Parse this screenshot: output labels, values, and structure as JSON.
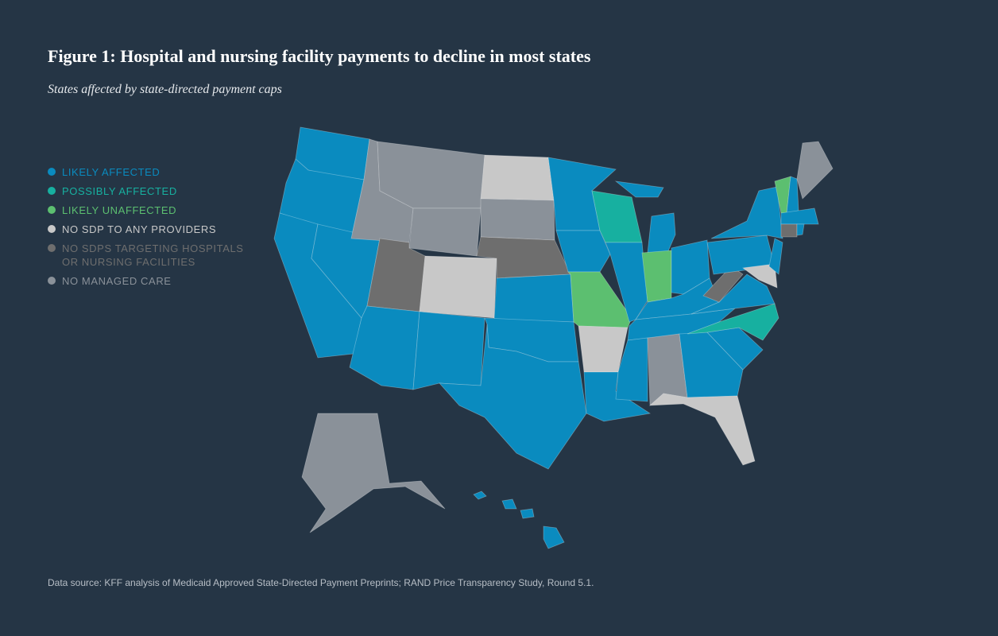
{
  "title": "Figure 1: Hospital and nursing facility payments to decline in most states",
  "subtitle": "States affected by state-directed payment caps",
  "legend": [
    {
      "label": "LIKELY AFFECTED",
      "color": "#0a8bbf"
    },
    {
      "label": "POSSIBLY AFFECTED",
      "color": "#17b0a0"
    },
    {
      "label": "LIKELY UNAFFECTED",
      "color": "#5cbf70"
    },
    {
      "label": "NO SDP TO ANY PROVIDERS",
      "color": "#c8c8c8"
    },
    {
      "label": "NO SDPS TARGETING HOSPITALS OR NURSING FACILITIES",
      "color": "#6e6e6e"
    },
    {
      "label": "NO MANAGED CARE",
      "color": "#8a9199"
    }
  ],
  "source": "Data source: KFF analysis of Medicaid Approved State-Directed Payment Preprints; RAND Price Transparency Study, Round 5.1."
}
